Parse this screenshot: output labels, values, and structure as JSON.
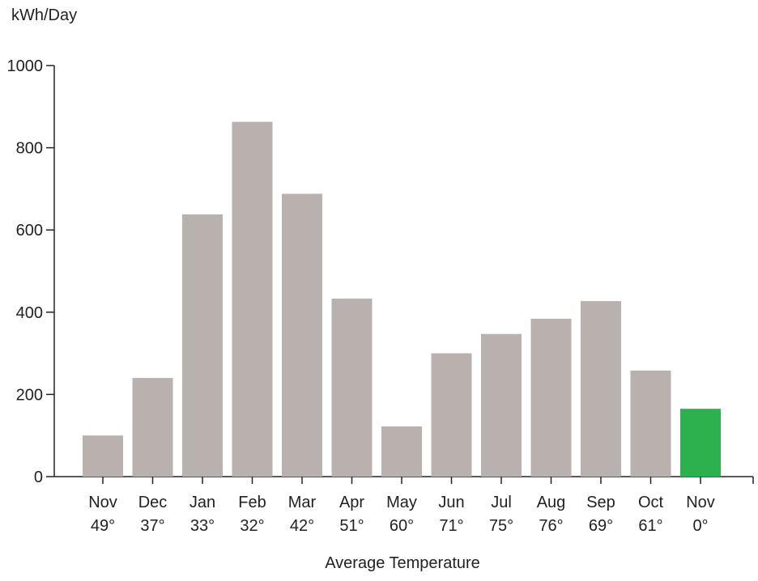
{
  "chart_data": {
    "type": "bar",
    "ylabel": "kWh/Day",
    "xlabel": "Average Temperature",
    "ylim": [
      0,
      1000
    ],
    "y_ticks": [
      "0",
      "200",
      "400",
      "600",
      "800",
      "1000"
    ],
    "categories": [
      "Nov",
      "Dec",
      "Jan",
      "Feb",
      "Mar",
      "Apr",
      "May",
      "Jun",
      "Jul",
      "Aug",
      "Sep",
      "Oct",
      "Nov"
    ],
    "temperatures": [
      "49°",
      "37°",
      "33°",
      "32°",
      "42°",
      "51°",
      "60°",
      "71°",
      "75°",
      "76°",
      "69°",
      "61°",
      "0°"
    ],
    "values": [
      100,
      240,
      638,
      863,
      688,
      433,
      122,
      300,
      347,
      384,
      427,
      258,
      165
    ],
    "bar_colors": [
      "#b8b1ad",
      "#b8b1ad",
      "#b8b1ad",
      "#b8b1ad",
      "#b8b1ad",
      "#b8b1ad",
      "#b8b1ad",
      "#b8b1ad",
      "#b8b1ad",
      "#b8b1ad",
      "#b8b1ad",
      "#b8b1ad",
      "#2db14f"
    ],
    "grid": false,
    "legend": "none"
  }
}
